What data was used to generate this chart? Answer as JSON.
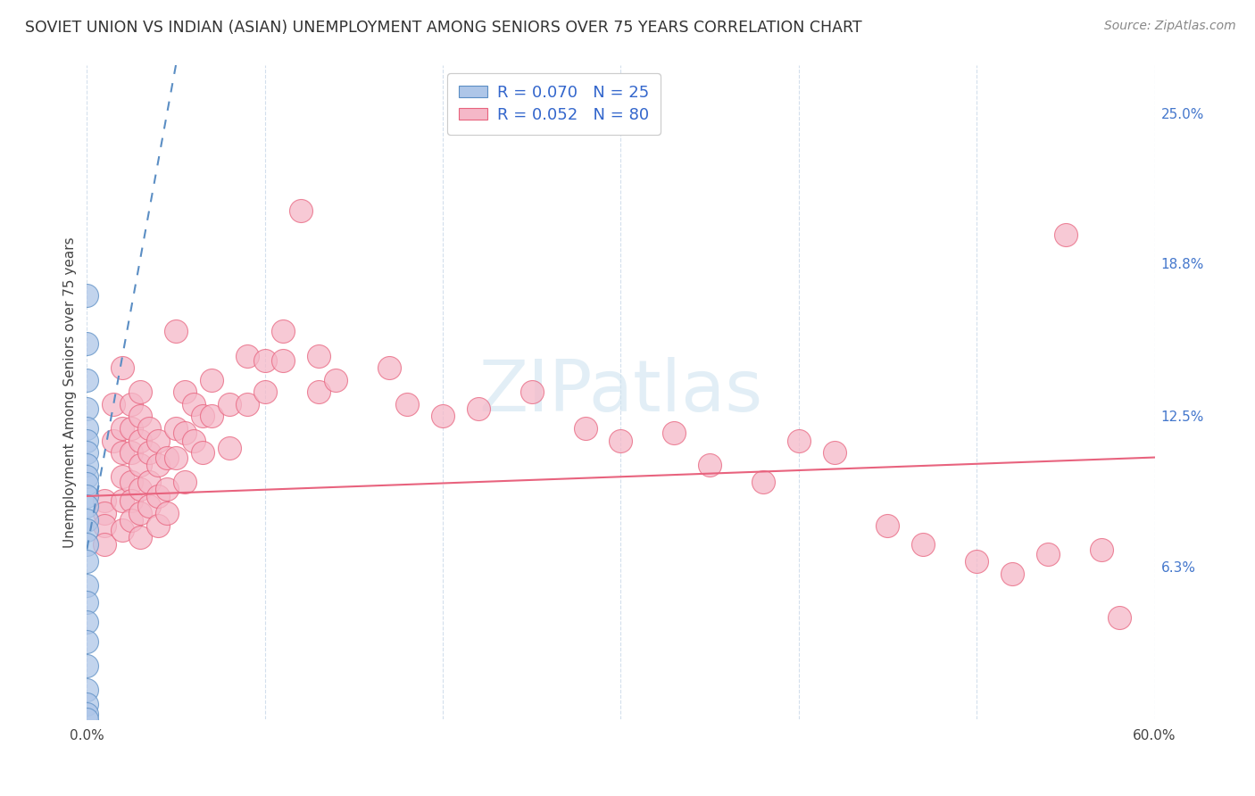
{
  "title": "SOVIET UNION VS INDIAN (ASIAN) UNEMPLOYMENT AMONG SENIORS OVER 75 YEARS CORRELATION CHART",
  "source": "Source: ZipAtlas.com",
  "ylabel": "Unemployment Among Seniors over 75 years",
  "xlim": [
    0,
    0.6
  ],
  "ylim": [
    0,
    0.27
  ],
  "yticks": [
    0.063,
    0.125,
    0.188,
    0.25
  ],
  "ytick_labels": [
    "6.3%",
    "12.5%",
    "18.8%",
    "25.0%"
  ],
  "soviet_color": "#aec6e8",
  "soviet_edge": "#5b8ec4",
  "indian_color": "#f5b8c8",
  "indian_edge": "#e8637e",
  "trendline_soviet_color": "#5b8ec4",
  "trendline_indian_color": "#e8637e",
  "R_soviet": 0.07,
  "N_soviet": 25,
  "R_indian": 0.052,
  "N_indian": 80,
  "watermark": "ZIPatlas",
  "soviet_points": [
    [
      0.0,
      0.175
    ],
    [
      0.0,
      0.155
    ],
    [
      0.0,
      0.14
    ],
    [
      0.0,
      0.128
    ],
    [
      0.0,
      0.12
    ],
    [
      0.0,
      0.115
    ],
    [
      0.0,
      0.11
    ],
    [
      0.0,
      0.105
    ],
    [
      0.0,
      0.1
    ],
    [
      0.0,
      0.097
    ],
    [
      0.0,
      0.092
    ],
    [
      0.0,
      0.088
    ],
    [
      0.0,
      0.082
    ],
    [
      0.0,
      0.078
    ],
    [
      0.0,
      0.072
    ],
    [
      0.0,
      0.065
    ],
    [
      0.0,
      0.055
    ],
    [
      0.0,
      0.048
    ],
    [
      0.0,
      0.04
    ],
    [
      0.0,
      0.032
    ],
    [
      0.0,
      0.022
    ],
    [
      0.0,
      0.012
    ],
    [
      0.0,
      0.006
    ],
    [
      0.0,
      0.002
    ],
    [
      0.0,
      0.0
    ]
  ],
  "indian_points": [
    [
      0.01,
      0.09
    ],
    [
      0.01,
      0.085
    ],
    [
      0.01,
      0.08
    ],
    [
      0.01,
      0.072
    ],
    [
      0.015,
      0.13
    ],
    [
      0.015,
      0.115
    ],
    [
      0.02,
      0.145
    ],
    [
      0.02,
      0.12
    ],
    [
      0.02,
      0.11
    ],
    [
      0.02,
      0.1
    ],
    [
      0.02,
      0.09
    ],
    [
      0.02,
      0.078
    ],
    [
      0.025,
      0.13
    ],
    [
      0.025,
      0.12
    ],
    [
      0.025,
      0.11
    ],
    [
      0.025,
      0.098
    ],
    [
      0.025,
      0.09
    ],
    [
      0.025,
      0.082
    ],
    [
      0.03,
      0.135
    ],
    [
      0.03,
      0.125
    ],
    [
      0.03,
      0.115
    ],
    [
      0.03,
      0.105
    ],
    [
      0.03,
      0.095
    ],
    [
      0.03,
      0.085
    ],
    [
      0.03,
      0.075
    ],
    [
      0.035,
      0.12
    ],
    [
      0.035,
      0.11
    ],
    [
      0.035,
      0.098
    ],
    [
      0.035,
      0.088
    ],
    [
      0.04,
      0.115
    ],
    [
      0.04,
      0.105
    ],
    [
      0.04,
      0.092
    ],
    [
      0.04,
      0.08
    ],
    [
      0.045,
      0.108
    ],
    [
      0.045,
      0.095
    ],
    [
      0.045,
      0.085
    ],
    [
      0.05,
      0.16
    ],
    [
      0.05,
      0.12
    ],
    [
      0.05,
      0.108
    ],
    [
      0.055,
      0.135
    ],
    [
      0.055,
      0.118
    ],
    [
      0.055,
      0.098
    ],
    [
      0.06,
      0.13
    ],
    [
      0.06,
      0.115
    ],
    [
      0.065,
      0.125
    ],
    [
      0.065,
      0.11
    ],
    [
      0.07,
      0.14
    ],
    [
      0.07,
      0.125
    ],
    [
      0.08,
      0.13
    ],
    [
      0.08,
      0.112
    ],
    [
      0.09,
      0.15
    ],
    [
      0.09,
      0.13
    ],
    [
      0.1,
      0.148
    ],
    [
      0.1,
      0.135
    ],
    [
      0.11,
      0.16
    ],
    [
      0.11,
      0.148
    ],
    [
      0.12,
      0.21
    ],
    [
      0.13,
      0.15
    ],
    [
      0.13,
      0.135
    ],
    [
      0.14,
      0.14
    ],
    [
      0.17,
      0.145
    ],
    [
      0.18,
      0.13
    ],
    [
      0.2,
      0.125
    ],
    [
      0.22,
      0.128
    ],
    [
      0.25,
      0.135
    ],
    [
      0.28,
      0.12
    ],
    [
      0.3,
      0.115
    ],
    [
      0.33,
      0.118
    ],
    [
      0.35,
      0.105
    ],
    [
      0.38,
      0.098
    ],
    [
      0.4,
      0.115
    ],
    [
      0.42,
      0.11
    ],
    [
      0.45,
      0.08
    ],
    [
      0.47,
      0.072
    ],
    [
      0.5,
      0.065
    ],
    [
      0.52,
      0.06
    ],
    [
      0.54,
      0.068
    ],
    [
      0.55,
      0.2
    ],
    [
      0.57,
      0.07
    ],
    [
      0.58,
      0.042
    ]
  ],
  "soviet_trendline": [
    [
      0.0,
      0.07
    ],
    [
      0.05,
      0.27
    ]
  ],
  "indian_trendline": [
    [
      0.0,
      0.092
    ],
    [
      0.6,
      0.108
    ]
  ]
}
